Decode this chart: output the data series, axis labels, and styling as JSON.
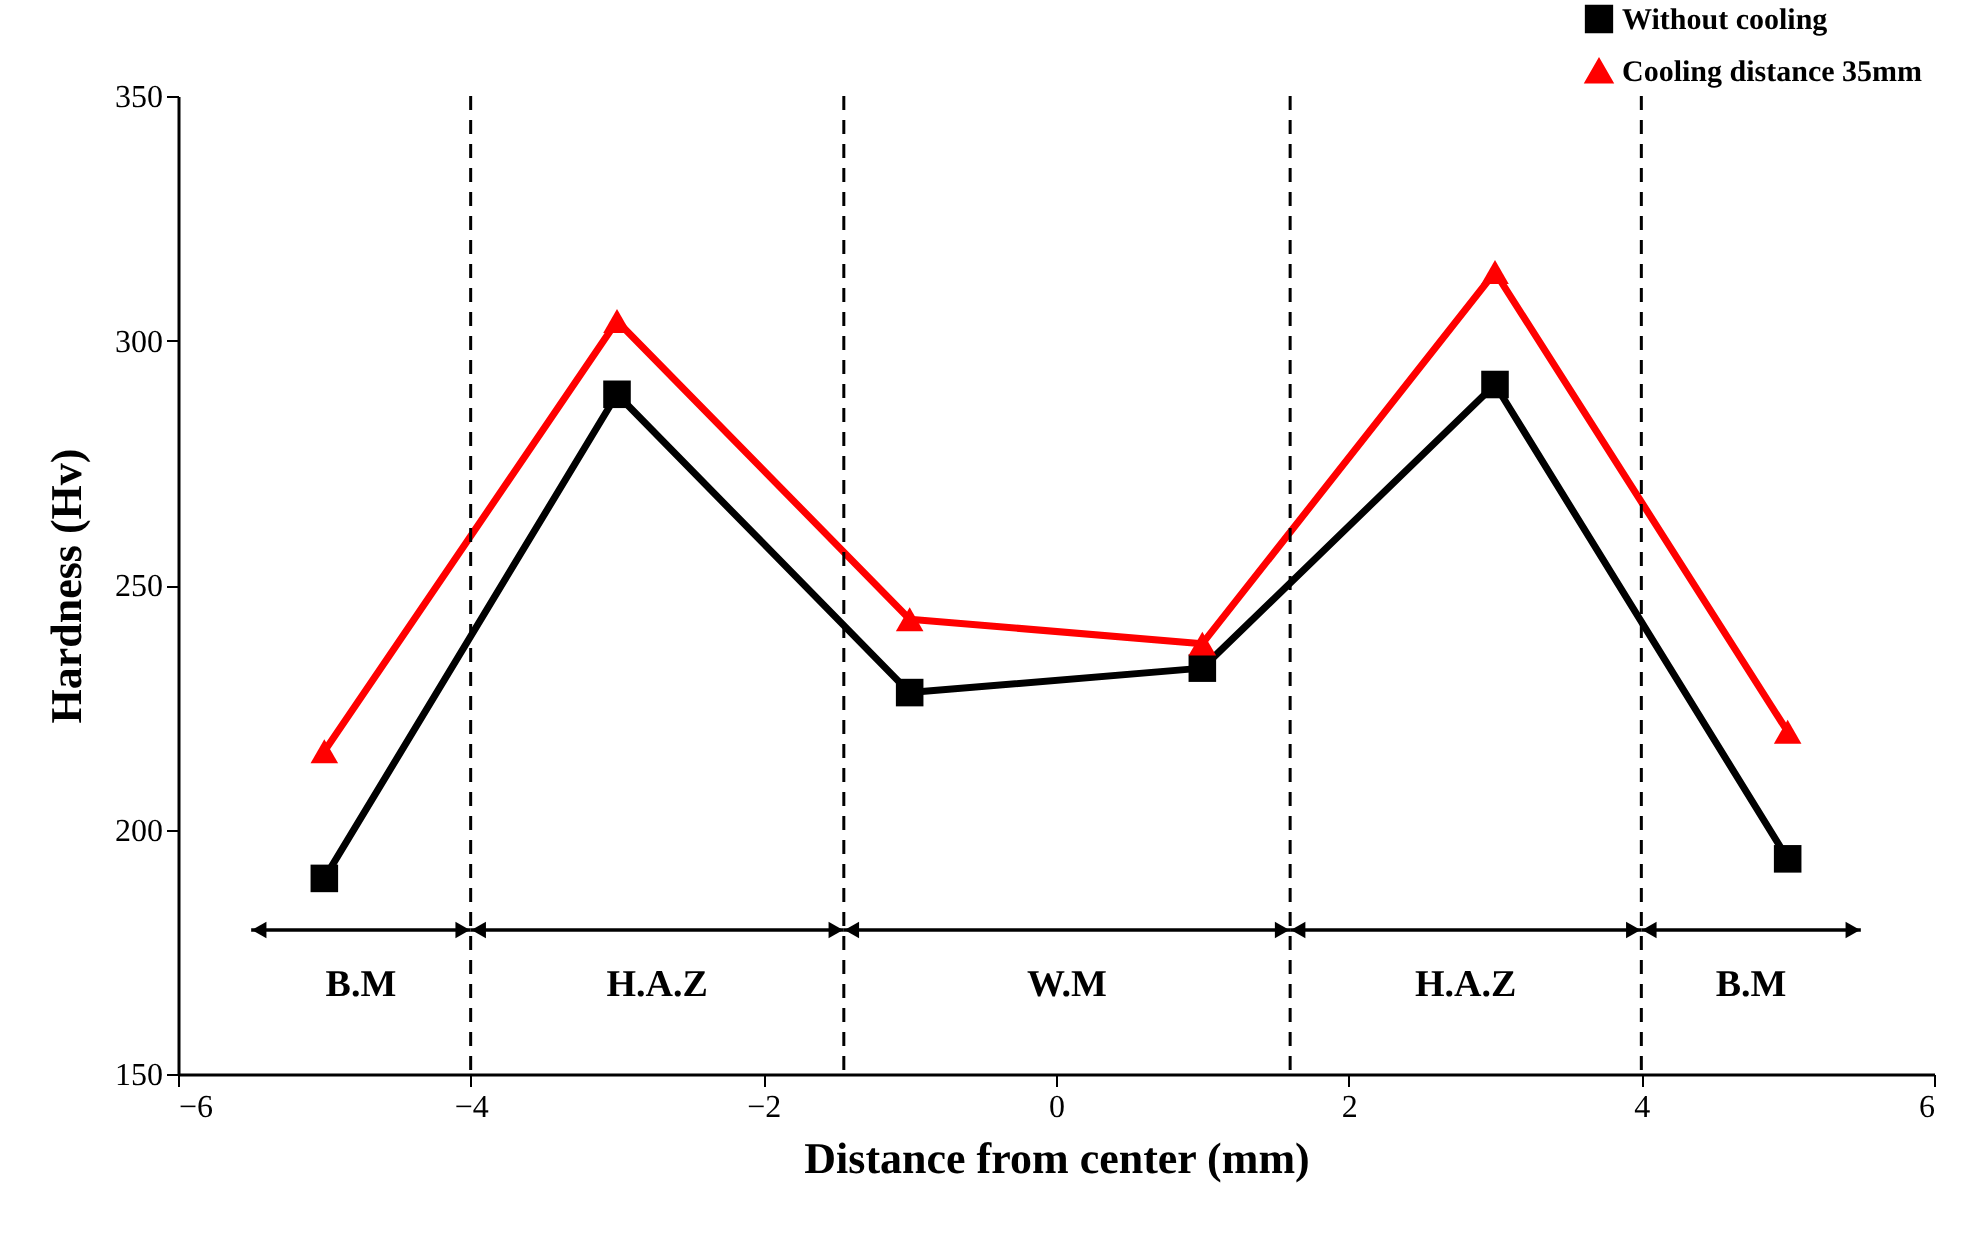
{
  "chart_data": {
    "type": "line",
    "xlabel": "Distance from center (mm)",
    "ylabel": "Hardness (Hv)",
    "x": [
      -5,
      -3,
      -1,
      1,
      3,
      5
    ],
    "series": [
      {
        "name": "Without cooling",
        "color": "#000000",
        "marker": "square",
        "values": [
          190,
          289,
          228,
          233,
          291,
          194
        ]
      },
      {
        "name": "Cooling distance 35mm",
        "color": "#ff0000",
        "marker": "triangle",
        "values": [
          216,
          304,
          243,
          238,
          314,
          220
        ]
      }
    ],
    "xlim": [
      -6,
      6
    ],
    "xticks": [
      -6,
      -4,
      -2,
      0,
      2,
      4,
      6
    ],
    "ylim": [
      150,
      350
    ],
    "yticks": [
      150,
      200,
      250,
      300,
      350
    ],
    "ref_lines": [
      {
        "axis": "x",
        "value": -4,
        "color": "#000000",
        "line_style": "dashed"
      },
      {
        "axis": "x",
        "value": -1.45,
        "color": "#000000",
        "line_style": "dashed"
      },
      {
        "axis": "x",
        "value": 1.6,
        "color": "#000000",
        "line_style": "dashed"
      },
      {
        "axis": "x",
        "value": 4,
        "color": "#000000",
        "line_style": "dashed"
      }
    ],
    "annotations": [
      "B.M",
      "H.A.Z",
      "W.M",
      "H.A.Z",
      "B.M"
    ],
    "grid": false,
    "legend": "top right",
    "line_style": "solid"
  }
}
